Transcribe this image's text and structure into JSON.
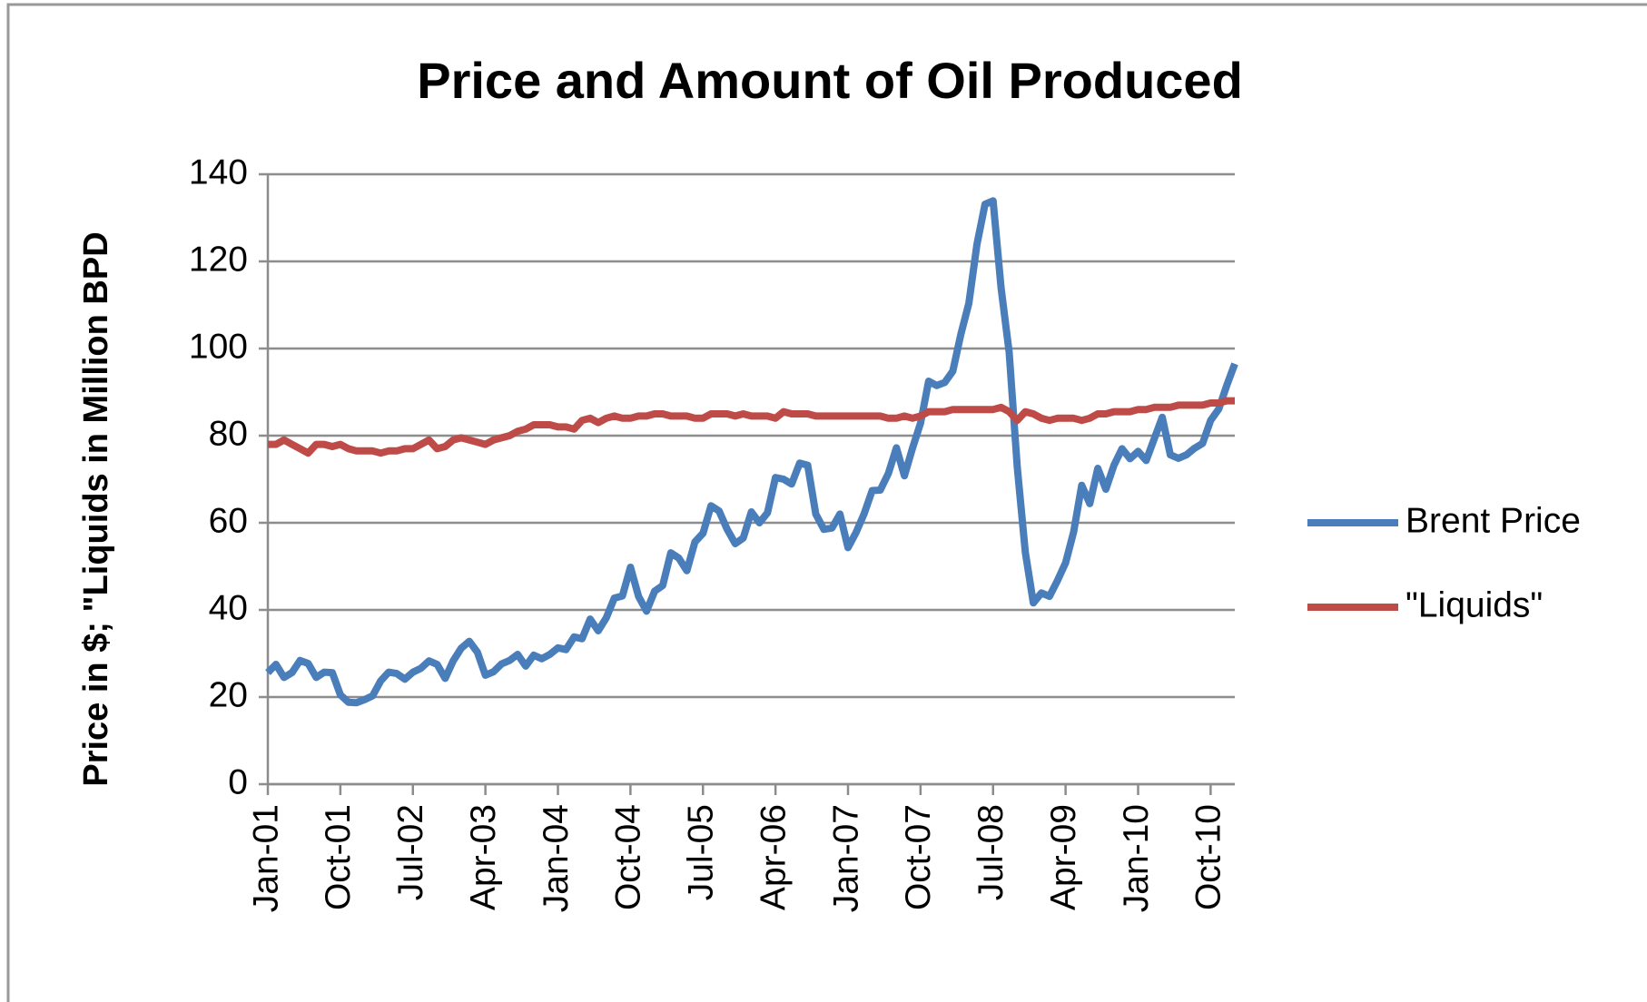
{
  "chart_data": {
    "type": "line",
    "title": "Price and Amount of Oil Produced",
    "y_label": "Price in $; \"Liquids in Million BPD",
    "categories": [
      "Jan-01",
      null,
      null,
      null,
      null,
      null,
      null,
      null,
      null,
      "Oct-01",
      null,
      null,
      null,
      null,
      null,
      null,
      null,
      null,
      "Jul-02",
      null,
      null,
      null,
      null,
      null,
      null,
      null,
      null,
      "Apr-03",
      null,
      null,
      null,
      null,
      null,
      null,
      null,
      null,
      "Jan-04",
      null,
      null,
      null,
      null,
      null,
      null,
      null,
      null,
      "Oct-04",
      null,
      null,
      null,
      null,
      null,
      null,
      null,
      null,
      "Jul-05",
      null,
      null,
      null,
      null,
      null,
      null,
      null,
      null,
      "Apr-06",
      null,
      null,
      null,
      null,
      null,
      null,
      null,
      null,
      "Jan-07",
      null,
      null,
      null,
      null,
      null,
      null,
      null,
      null,
      "Oct-07",
      null,
      null,
      null,
      null,
      null,
      null,
      null,
      null,
      "Jul-08",
      null,
      null,
      null,
      null,
      null,
      null,
      null,
      null,
      "Apr-09",
      null,
      null,
      null,
      null,
      null,
      null,
      null,
      null,
      "Jan-10",
      null,
      null,
      null,
      null,
      null,
      null,
      null,
      null,
      "Oct-10",
      null,
      null,
      null
    ],
    "series": [
      {
        "name": "Brent Price",
        "color": "#4a7ebb",
        "values": [
          25.6,
          27.5,
          24.5,
          25.6,
          28.4,
          27.7,
          24.5,
          25.7,
          25.6,
          20.5,
          18.8,
          18.7,
          19.4,
          20.3,
          23.7,
          25.7,
          25.4,
          24.1,
          25.7,
          26.6,
          28.3,
          27.5,
          24.3,
          28.3,
          31.2,
          32.8,
          30.3,
          25.0,
          25.8,
          27.6,
          28.4,
          29.8,
          27.1,
          29.6,
          28.8,
          29.8,
          31.3,
          30.9,
          33.8,
          33.4,
          37.9,
          35.2,
          38.2,
          42.7,
          43.2,
          49.8,
          43.1,
          39.7,
          44.3,
          45.6,
          53.1,
          51.9,
          49.0,
          55.6,
          57.6,
          63.9,
          62.7,
          58.5,
          55.2,
          56.5,
          62.5,
          60.0,
          62.3,
          70.4,
          70.0,
          68.9,
          73.7,
          73.2,
          62.0,
          58.5,
          58.8,
          62.0,
          54.3,
          57.8,
          62.1,
          67.4,
          67.5,
          71.3,
          77.2,
          70.8,
          77.1,
          82.9,
          92.5,
          91.5,
          92.2,
          94.8,
          103.3,
          110.4,
          123.9,
          133.1,
          133.9,
          113.9,
          99.1,
          72.8,
          53.2,
          41.6,
          43.9,
          43.1,
          46.8,
          50.8,
          57.9,
          68.6,
          64.4,
          72.5,
          67.7,
          73.2,
          77.0,
          74.7,
          76.4,
          74.3,
          79.3,
          84.2,
          75.6,
          74.8,
          75.6,
          77.1,
          78.2,
          83.5,
          86.1,
          91.5,
          96.5
        ]
      },
      {
        "name": "\"Liquids\"",
        "color": "#be4b48",
        "values": [
          78,
          78,
          79,
          78,
          77,
          76,
          78,
          78,
          77.5,
          78,
          77,
          76.5,
          76.5,
          76.5,
          76,
          76.5,
          76.5,
          77,
          77,
          78,
          79,
          77,
          77.5,
          79,
          79.5,
          79,
          78.5,
          78,
          79,
          79.5,
          80,
          81,
          81.5,
          82.5,
          82.5,
          82.5,
          82,
          82,
          81.5,
          83.5,
          84,
          83,
          84,
          84.5,
          84,
          84,
          84.5,
          84.5,
          85,
          85,
          84.5,
          84.5,
          84.5,
          84,
          84,
          85,
          85,
          85,
          84.5,
          85,
          84.5,
          84.5,
          84.5,
          84,
          85.5,
          85,
          85,
          85,
          84.5,
          84.5,
          84.5,
          84.5,
          84.5,
          84.5,
          84.5,
          84.5,
          84.5,
          84,
          84,
          84.5,
          84,
          84.5,
          85.5,
          85.5,
          85.5,
          86,
          86,
          86,
          86,
          86,
          86,
          86.5,
          85.5,
          83.5,
          85.5,
          85,
          84,
          83.5,
          84,
          84,
          84,
          83.5,
          84,
          85,
          85,
          85.5,
          85.5,
          85.5,
          86,
          86,
          86.5,
          86.5,
          86.5,
          87,
          87,
          87,
          87,
          87.5,
          87.5,
          88,
          88
        ]
      }
    ],
    "ylim": [
      0,
      140
    ],
    "yticks": [
      0,
      20,
      40,
      60,
      80,
      100,
      120,
      140
    ],
    "grid": true,
    "legend": "right"
  }
}
